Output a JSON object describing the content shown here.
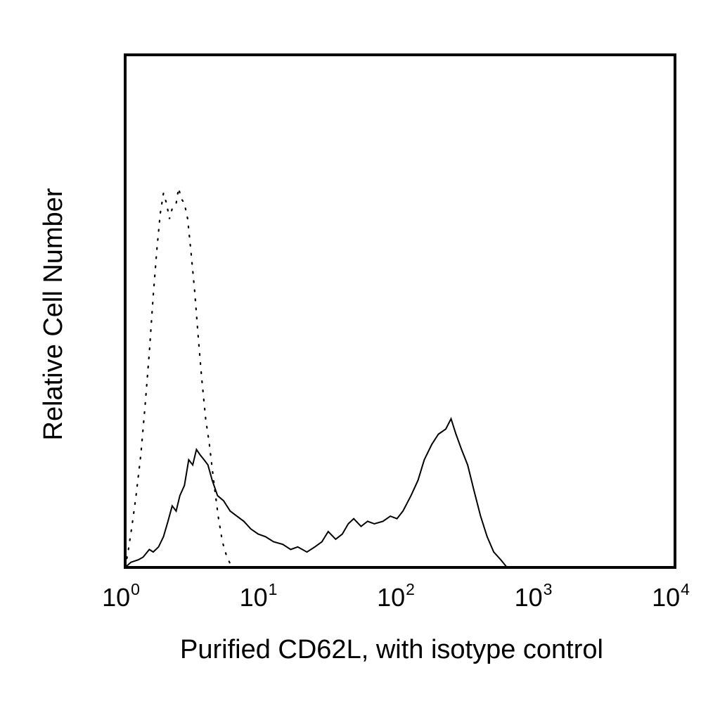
{
  "chart_data": {
    "type": "area",
    "xlabel": "Purified CD62L, with isotype control",
    "ylabel": "Relative Cell Number",
    "x_scale": "log",
    "xlim": [
      1,
      10000
    ],
    "ylim": [
      0,
      100
    ],
    "grid": false,
    "x_ticks": [
      {
        "base": "10",
        "exp": "0",
        "value": 1
      },
      {
        "base": "10",
        "exp": "1",
        "value": 10
      },
      {
        "base": "10",
        "exp": "2",
        "value": 100
      },
      {
        "base": "10",
        "exp": "3",
        "value": 1000
      },
      {
        "base": "10",
        "exp": "4",
        "value": 10000
      }
    ],
    "series": [
      {
        "style": "solid",
        "color": "#000000",
        "points": [
          [
            1.0,
            0
          ],
          [
            1.1,
            1
          ],
          [
            1.25,
            1.5
          ],
          [
            1.35,
            2
          ],
          [
            1.5,
            3.5
          ],
          [
            1.6,
            3
          ],
          [
            1.75,
            4
          ],
          [
            1.9,
            6
          ],
          [
            2.05,
            9
          ],
          [
            2.2,
            12
          ],
          [
            2.35,
            11
          ],
          [
            2.5,
            14
          ],
          [
            2.7,
            16
          ],
          [
            2.9,
            21
          ],
          [
            3.1,
            20
          ],
          [
            3.3,
            23
          ],
          [
            3.5,
            22
          ],
          [
            3.75,
            21
          ],
          [
            4.0,
            20
          ],
          [
            4.3,
            17
          ],
          [
            4.7,
            14
          ],
          [
            5.2,
            13
          ],
          [
            5.8,
            11
          ],
          [
            6.5,
            10
          ],
          [
            7.3,
            9
          ],
          [
            8.2,
            7.5
          ],
          [
            9.3,
            6.5
          ],
          [
            10.5,
            6
          ],
          [
            12.0,
            5
          ],
          [
            14.0,
            4.5
          ],
          [
            16.0,
            3.5
          ],
          [
            18.0,
            4
          ],
          [
            21.0,
            3
          ],
          [
            24.0,
            4
          ],
          [
            27.0,
            5
          ],
          [
            30.0,
            7
          ],
          [
            34.0,
            5.5
          ],
          [
            38.0,
            6.5
          ],
          [
            42.0,
            8.5
          ],
          [
            46.0,
            9.5
          ],
          [
            52.0,
            8
          ],
          [
            58.0,
            9
          ],
          [
            65.0,
            8.5
          ],
          [
            75.0,
            9
          ],
          [
            85.0,
            10
          ],
          [
            95.0,
            9.5
          ],
          [
            105.0,
            11
          ],
          [
            120.0,
            14
          ],
          [
            135.0,
            17
          ],
          [
            150.0,
            21
          ],
          [
            170.0,
            24
          ],
          [
            190.0,
            26
          ],
          [
            215.0,
            27
          ],
          [
            235.0,
            29
          ],
          [
            255.0,
            26
          ],
          [
            280.0,
            23
          ],
          [
            310.0,
            20
          ],
          [
            345.0,
            15
          ],
          [
            385.0,
            10
          ],
          [
            430.0,
            6
          ],
          [
            480.0,
            3
          ],
          [
            540.0,
            1.5
          ],
          [
            600.0,
            0
          ]
        ]
      },
      {
        "style": "dotted",
        "color": "#000000",
        "points": [
          [
            1.0,
            0
          ],
          [
            1.05,
            3
          ],
          [
            1.12,
            8
          ],
          [
            1.2,
            14
          ],
          [
            1.3,
            22
          ],
          [
            1.4,
            32
          ],
          [
            1.5,
            42
          ],
          [
            1.6,
            53
          ],
          [
            1.7,
            62
          ],
          [
            1.8,
            69
          ],
          [
            1.9,
            73
          ],
          [
            2.0,
            71
          ],
          [
            2.1,
            68
          ],
          [
            2.2,
            70
          ],
          [
            2.35,
            71
          ],
          [
            2.45,
            74
          ],
          [
            2.55,
            72
          ],
          [
            2.7,
            71
          ],
          [
            2.85,
            68
          ],
          [
            3.0,
            62
          ],
          [
            3.2,
            54
          ],
          [
            3.4,
            45
          ],
          [
            3.6,
            37
          ],
          [
            3.85,
            29
          ],
          [
            4.1,
            24
          ],
          [
            4.4,
            17
          ],
          [
            4.75,
            10
          ],
          [
            5.1,
            5
          ],
          [
            5.5,
            2
          ],
          [
            6.0,
            0
          ]
        ]
      }
    ]
  }
}
